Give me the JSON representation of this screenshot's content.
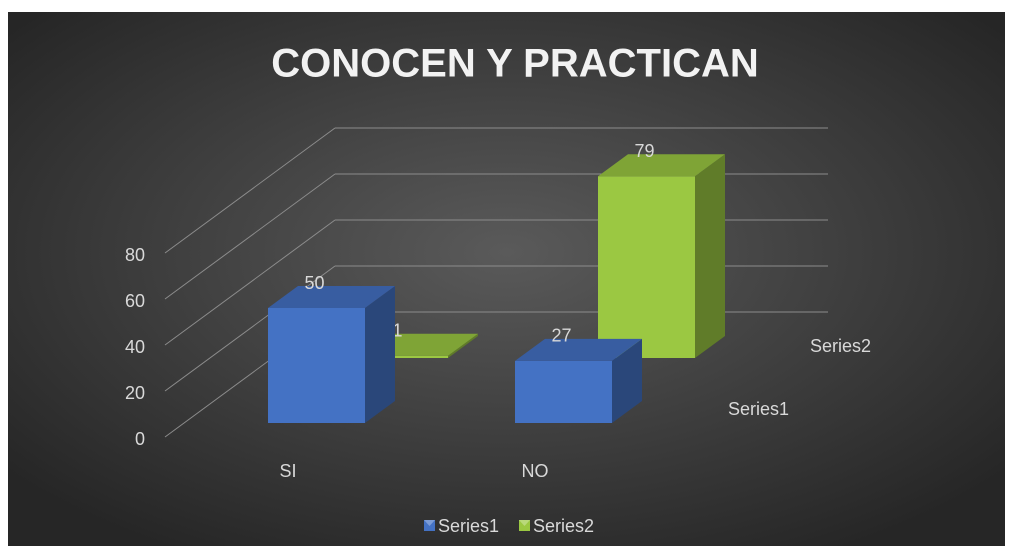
{
  "chart_data": {
    "type": "bar3d",
    "title": "CONOCEN Y PRACTICAN",
    "categories": [
      "SI",
      "NO"
    ],
    "series": [
      {
        "name": "Series1",
        "color": "#4472c4",
        "values": [
          50,
          27
        ]
      },
      {
        "name": "Series2",
        "color": "#9bc842",
        "values": [
          1,
          79
        ]
      }
    ],
    "ylim": [
      0,
      80
    ],
    "yticks": [
      0,
      20,
      40,
      60,
      80
    ],
    "grid": true,
    "legend": "bottom"
  }
}
